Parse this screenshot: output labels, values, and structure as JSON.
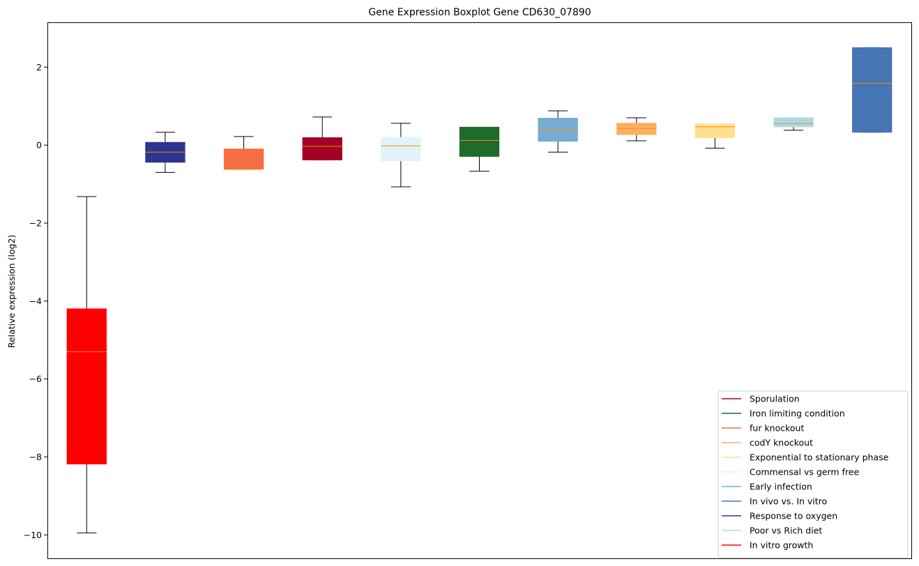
{
  "chart_data": {
    "type": "boxplot",
    "title": "Gene Expression Boxplot Gene CD630_07890",
    "xlabel": "",
    "ylabel": "Relative expression (log2)",
    "ylim": [
      -10.6,
      3.15
    ],
    "yticks": [
      2,
      0,
      -2,
      -4,
      -6,
      -8,
      -10
    ],
    "ytick_labels": [
      "2",
      "0",
      "−2",
      "−4",
      "−6",
      "−8",
      "−10"
    ],
    "grid": false,
    "legend_position": "bottom-right",
    "median_color": "#ff8c00",
    "boxes": [
      {
        "name": "In vitro growth",
        "color": "#ff0000",
        "whislo": -9.95,
        "q1": -8.18,
        "med": -5.3,
        "q3": -4.2,
        "whishi": -1.32
      },
      {
        "name": "Response to oxygen",
        "color": "#2d3590",
        "whislo": -0.7,
        "q1": -0.44,
        "med": -0.18,
        "q3": 0.07,
        "whishi": 0.33
      },
      {
        "name": "fur knockout",
        "color": "#f46d43",
        "whislo": -0.62,
        "q1": -0.62,
        "med": -0.62,
        "q3": -0.1,
        "whishi": 0.22
      },
      {
        "name": "Sporulation",
        "color": "#a50026",
        "whislo": -0.38,
        "q1": -0.38,
        "med": -0.03,
        "q3": 0.19,
        "whishi": 0.72
      },
      {
        "name": "Commensal vs germ free",
        "color": "#e0f3f8",
        "whislo": -1.07,
        "q1": -0.4,
        "med": -0.02,
        "q3": 0.2,
        "whishi": 0.56
      },
      {
        "name": "Iron limiting condition",
        "color": "#1f6b2c",
        "whislo": -0.67,
        "q1": -0.29,
        "med": 0.12,
        "q3": 0.46,
        "whishi": 0.46
      },
      {
        "name": "Early infection",
        "color": "#74add1",
        "whislo": -0.18,
        "q1": 0.1,
        "med": 0.4,
        "q3": 0.69,
        "whishi": 0.88
      },
      {
        "name": "codY knockout",
        "color": "#fdae61",
        "whislo": 0.11,
        "q1": 0.27,
        "med": 0.43,
        "q3": 0.56,
        "whishi": 0.7
      },
      {
        "name": "Exponential to stationary phase",
        "color": "#fee090",
        "whislo": -0.08,
        "q1": 0.19,
        "med": 0.47,
        "q3": 0.54,
        "whishi": 0.54
      },
      {
        "name": "Poor vs Rich diet",
        "color": "#abd9e9",
        "whislo": 0.38,
        "q1": 0.47,
        "med": 0.55,
        "q3": 0.7,
        "whishi": 0.7
      },
      {
        "name": "In vivo vs. In vitro",
        "color": "#4575b4",
        "whislo": 0.33,
        "q1": 0.33,
        "med": 1.58,
        "q3": 2.5,
        "whishi": 2.5
      }
    ],
    "legend": [
      {
        "label": "Sporulation",
        "color": "#a50026"
      },
      {
        "label": "Iron limiting condition",
        "color": "#1f6b2c"
      },
      {
        "label": "fur knockout",
        "color": "#f46d43"
      },
      {
        "label": "codY knockout",
        "color": "#fdae61"
      },
      {
        "label": "Exponential to stationary phase",
        "color": "#fee090"
      },
      {
        "label": "Commensal vs germ free",
        "color": "#e0f3f8"
      },
      {
        "label": "Early infection",
        "color": "#74add1"
      },
      {
        "label": "In vivo vs. In vitro",
        "color": "#4575b4"
      },
      {
        "label": "Response to oxygen",
        "color": "#2d3590"
      },
      {
        "label": "Poor vs Rich diet",
        "color": "#abd9e9"
      },
      {
        "label": "In vitro growth",
        "color": "#ff0000"
      }
    ]
  }
}
